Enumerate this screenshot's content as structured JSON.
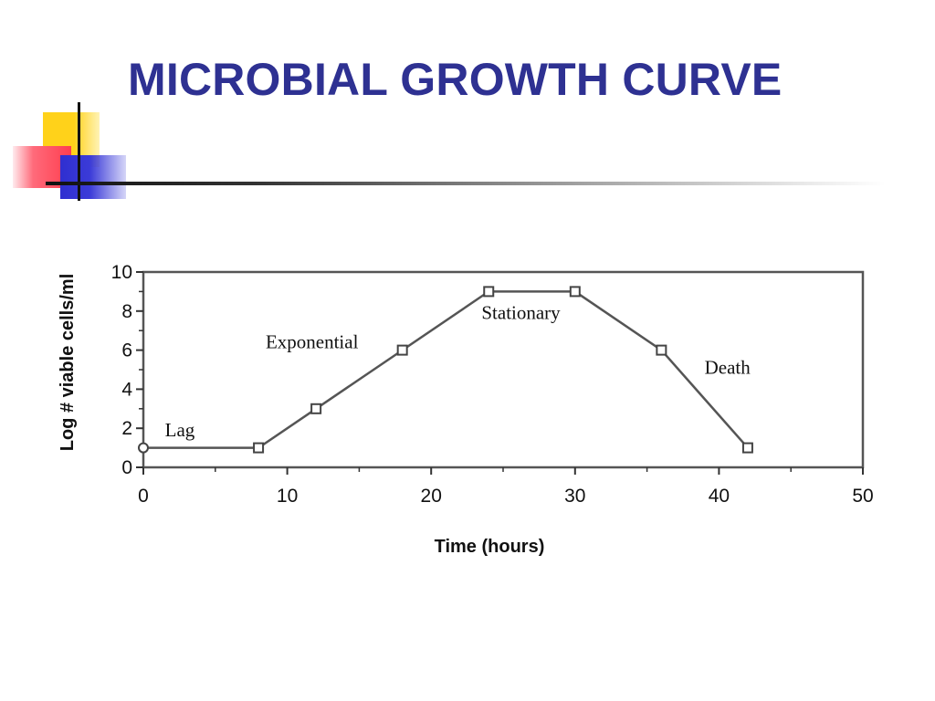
{
  "slide": {
    "title": "MICROBIAL GROWTH CURVE",
    "title_color": "#2e3192"
  },
  "decoration": {
    "yellow": "#ffd21a",
    "red": "#ff3d4f",
    "blue": "#2f2fd0"
  },
  "chart_data": {
    "type": "line",
    "xlabel": "Time (hours)",
    "ylabel": "Log # viable cells/ml",
    "xlim": [
      0,
      50
    ],
    "ylim": [
      0,
      10
    ],
    "x_ticks": [
      0,
      10,
      20,
      30,
      40,
      50
    ],
    "y_ticks": [
      0,
      2,
      4,
      6,
      8,
      10
    ],
    "grid": false,
    "series": [
      {
        "x": [
          0,
          8,
          12,
          18,
          24,
          30,
          36,
          42
        ],
        "y": [
          1,
          1,
          3,
          6,
          9,
          9,
          6,
          1
        ],
        "color": "#555555"
      }
    ],
    "annotations": [
      {
        "text": "Lag",
        "x": 1.5,
        "y": 1.6
      },
      {
        "text": "Exponential",
        "x": 8.5,
        "y": 6.1
      },
      {
        "text": "Stationary",
        "x": 23.5,
        "y": 7.6
      },
      {
        "text": "Death",
        "x": 39,
        "y": 4.8
      }
    ]
  }
}
